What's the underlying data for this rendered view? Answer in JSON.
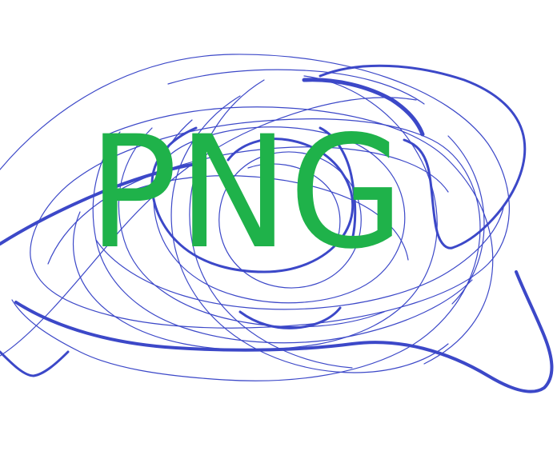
{
  "artwork": {
    "text": "PNG",
    "text_color": "#1fb24a",
    "stroke_color": "#3c48c8",
    "background": "#ffffff"
  }
}
